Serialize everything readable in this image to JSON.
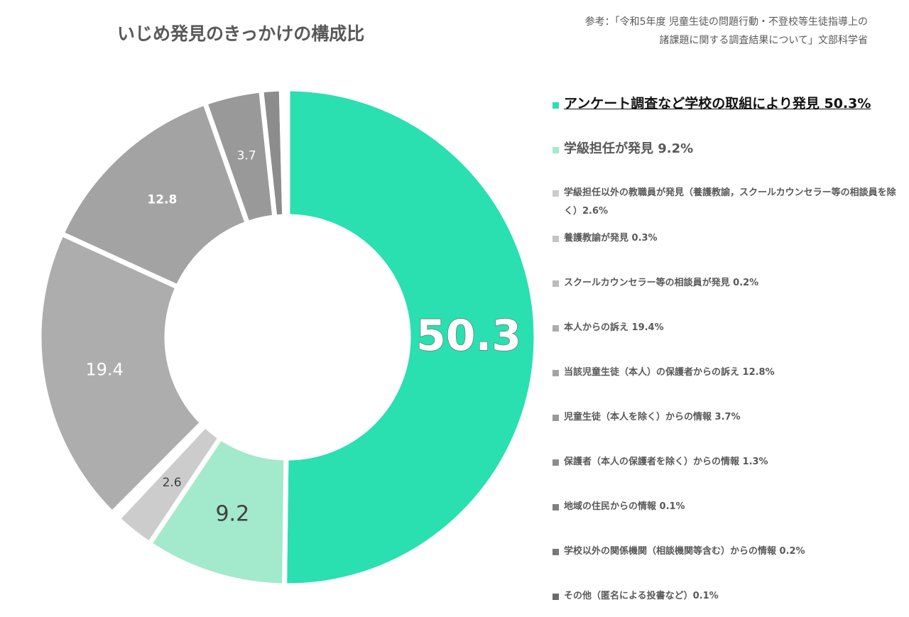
{
  "chart_data": {
    "type": "pie",
    "title": "いじめ発見のきっかけの構成比",
    "source": [
      "参考：「令和5年度 児童生徒の問題行動・不登校等生徒指導上の",
      "諸課題に関する調査結果について」文部科学省"
    ],
    "categories": [
      "アンケート調査など学校の取組により発見 50.3%",
      "学級担任が発見 9.2%",
      "学級担任以外の教職員が発見（養護教諭，スクールカウンセラー等の相談員を除く）2.6%",
      "養護教諭が発見 0.3%",
      "スクールカウンセラー等の相談員が発見 0.2%",
      "本人からの訴え 19.4%",
      "当該児童生徒（本人）の保護者からの訴え 12.8%",
      "児童生徒（本人を除く）からの情報 3.7%",
      "保護者（本人の保護者を除く）からの情報 1.3%",
      "地域の住民からの情報 0.1%",
      "学校以外の関係機関（相談機関等含む）からの情報 0.2%",
      "その他（匿名による投書など）0.1%"
    ],
    "values": [
      50.3,
      9.2,
      2.6,
      0.3,
      0.2,
      19.4,
      12.8,
      3.7,
      1.3,
      0.1,
      0.2,
      0.1
    ],
    "colors": [
      "#2adfb0",
      "#a3e9cc",
      "#cccccc",
      "#c4c4c4",
      "#bcbcbc",
      "#adadad",
      "#a3a3a3",
      "#999999",
      "#8c8c8c",
      "#808080",
      "#777777",
      "#6b6b6b"
    ]
  }
}
